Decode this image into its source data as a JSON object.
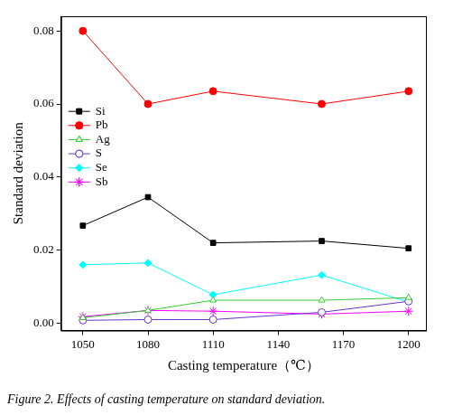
{
  "chart_data": {
    "type": "line",
    "title": "Figure 2. Effects of casting temperature on standard deviation.",
    "x_label": "Casting temperature（℃）",
    "y_label": "Standard deviation",
    "x": [
      1050,
      1080,
      1110,
      1160,
      1200
    ],
    "xlim": [
      1040,
      1208
    ],
    "xticks": [
      1050,
      1080,
      1110,
      1140,
      1170,
      1200
    ],
    "ylim": [
      -0.002,
      0.084
    ],
    "yticks": [
      {
        "value": 0,
        "label": "0.00"
      },
      {
        "value": 0.02,
        "label": "0.02"
      },
      {
        "value": 0.04,
        "label": "0.04"
      },
      {
        "value": 0.06,
        "label": "0.06"
      },
      {
        "value": 0.08,
        "label": "0.08"
      }
    ],
    "grid": false,
    "legend": "upper left",
    "series": [
      {
        "name": "Si",
        "color": "#000000",
        "marker": "square",
        "values": [
          0.0267,
          0.0345,
          0.022,
          0.0225,
          0.0205
        ]
      },
      {
        "name": "Pb",
        "color": "#ff0000",
        "marker": "circle",
        "values": [
          0.08,
          0.06,
          0.0635,
          0.06,
          0.0635
        ]
      },
      {
        "name": "Ag",
        "color": "#33cc33",
        "marker": "triangle_open",
        "values": [
          0.0015,
          0.0035,
          0.0063,
          0.0063,
          0.007
        ]
      },
      {
        "name": "S",
        "color": "#6633cc",
        "marker": "circle_open",
        "values": [
          0.0008,
          0.001,
          0.001,
          0.003,
          0.006
        ]
      },
      {
        "name": "Se",
        "color": "#00ffff",
        "marker": "diamond",
        "values": [
          0.016,
          0.0165,
          0.0078,
          0.0132,
          0.0058
        ]
      },
      {
        "name": "Sb",
        "color": "#ff00ff",
        "marker": "star",
        "values": [
          0.0018,
          0.0035,
          0.0033,
          0.0025,
          0.0033
        ]
      }
    ]
  }
}
